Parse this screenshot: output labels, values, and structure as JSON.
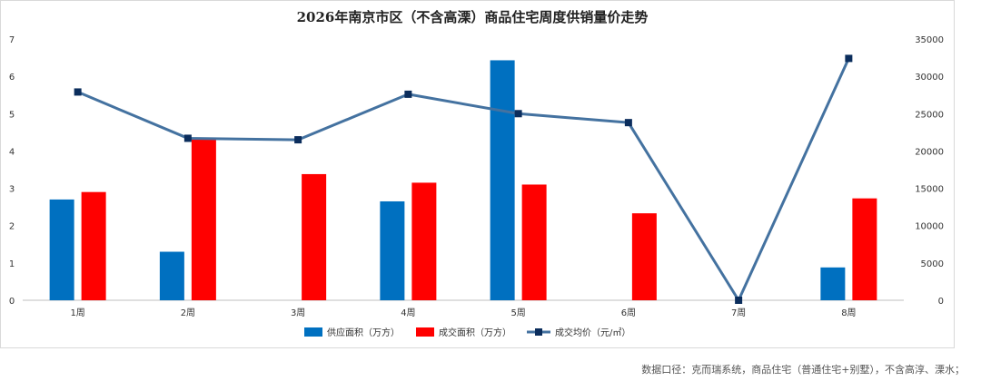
{
  "chart_data": {
    "type": "bar",
    "title": "2026年南京市区（不含高溧）商品住宅周度供销量价走势",
    "categories": [
      "1周",
      "2周",
      "3周",
      "4周",
      "5周",
      "6周",
      "7周",
      "8周"
    ],
    "series": [
      {
        "name": "供应面积（万方）",
        "type": "bar",
        "axis": "left",
        "color": "#0070C0",
        "values": [
          2.7,
          1.3,
          null,
          2.65,
          6.43,
          null,
          null,
          0.88
        ]
      },
      {
        "name": "成交面积（万方）",
        "type": "bar",
        "axis": "left",
        "color": "#FF0000",
        "values": [
          2.9,
          4.33,
          3.38,
          3.15,
          3.1,
          2.33,
          null,
          2.73
        ]
      },
      {
        "name": "成交均价（元/㎡）",
        "type": "line",
        "axis": "right",
        "color": "#4472A0",
        "marker_color": "#0B2D5C",
        "values": [
          27900,
          21700,
          21500,
          27600,
          25000,
          23800,
          0,
          32400
        ]
      }
    ],
    "y_left": {
      "ylim": [
        0,
        7
      ],
      "ticks": [
        "0",
        "1",
        "2",
        "3",
        "4",
        "5",
        "6",
        "7"
      ]
    },
    "y_right": {
      "ylim": [
        0,
        35000
      ],
      "ticks": [
        "0",
        "5000",
        "10000",
        "15000",
        "20000",
        "25000",
        "30000",
        "35000"
      ]
    },
    "grid": false,
    "legend_position": "bottom",
    "footnote": "数据口径：克而瑞系统，商品住宅（普通住宅+别墅），不含高淳、溧水；"
  }
}
